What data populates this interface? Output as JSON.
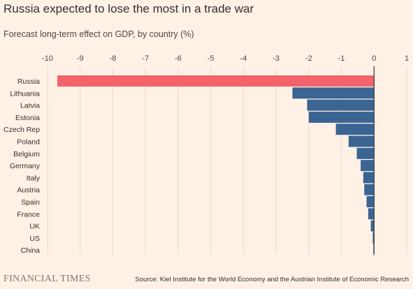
{
  "chart_data": {
    "type": "bar",
    "orientation": "horizontal",
    "title": "Russia expected to lose the most in a trade war",
    "subtitle": "Forecast long-term effect on GDP, by country (%)",
    "categories": [
      "Russia",
      "Lithuania",
      "Latvia",
      "Estonia",
      "Czech Rep",
      "Poland",
      "Belgium",
      "Germany",
      "Italy",
      "Austria",
      "Spain",
      "France",
      "UK",
      "US",
      "China"
    ],
    "values": [
      -9.7,
      -2.5,
      -2.05,
      -2.0,
      -1.17,
      -0.78,
      -0.53,
      -0.41,
      -0.33,
      -0.3,
      -0.23,
      -0.18,
      -0.1,
      -0.04,
      -0.02
    ],
    "xlim": [
      -10,
      1
    ],
    "xticks": [
      -10,
      -9,
      -8,
      -7,
      -6,
      -5,
      -4,
      -3,
      -2,
      -1,
      0,
      1
    ],
    "xaxis_position": "top",
    "grid": "vertical",
    "colors": {
      "highlight": "#f2636b",
      "bar": "#3a6593",
      "grid": "#e6d9ce",
      "zero_line": "#33302e"
    },
    "highlight_category": "Russia"
  },
  "footer": {
    "brand": "FINANCIAL TIMES",
    "source": "Source: Kiel Institute for the World Economy and the Austrian Institute of Economic Research"
  }
}
